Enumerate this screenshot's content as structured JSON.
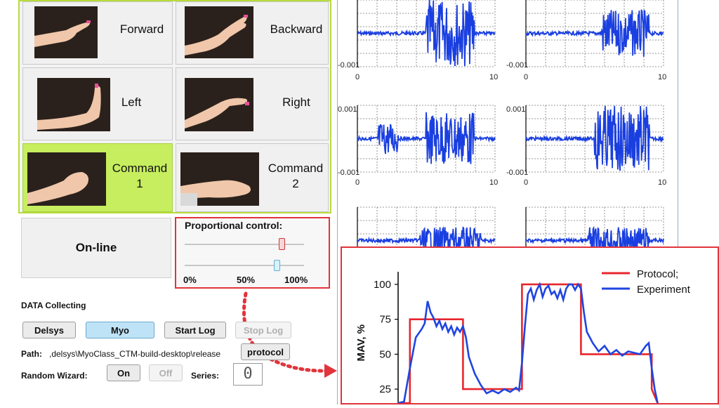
{
  "gestures": [
    {
      "label": "Forward"
    },
    {
      "label": "Backward"
    },
    {
      "label": "Left"
    },
    {
      "label": "Right"
    },
    {
      "label_line1": "Command",
      "label_line2": "1",
      "selected": true
    },
    {
      "label_line1": "Command",
      "label_line2": "2"
    }
  ],
  "online_button": "On-line",
  "proportional": {
    "title": "Proportional control:",
    "tick_0": "0%",
    "tick_50": "50%",
    "tick_100": "100%",
    "slider1_value_pct": 81,
    "slider2_value_pct": 77
  },
  "data_collecting": {
    "title": "DATA Collecting",
    "delsys": "Delsys",
    "myo": "Myo",
    "start_log": "Start Log",
    "stop_log": "Stop Log",
    "path_label": "Path:",
    "path_value": ",delsys\\MyoClass_CTM-build-desktop\\release",
    "protocol": "protocol",
    "random_wizard": "Random Wizard:",
    "on": "On",
    "off": "Off",
    "series": "Series:",
    "series_value": "0"
  },
  "emg_plots": {
    "y_top": "0.001",
    "y_bottom": "-0.001",
    "x_min": "0",
    "x_max": "10"
  },
  "chart_data": {
    "type": "line",
    "ylabel": "MAV, %",
    "yticks": [
      "100",
      "75",
      "50",
      "25"
    ],
    "ylim": [
      15,
      105
    ],
    "xlim": [
      0,
      100
    ],
    "legend_position": "top-right",
    "series": [
      {
        "name": "Protocol;",
        "color": "#e8262c",
        "x": [
          0,
          4,
          4,
          22,
          22,
          42,
          42,
          62,
          62,
          86,
          86,
          88
        ],
        "y": [
          15,
          15,
          75,
          75,
          25,
          25,
          100,
          100,
          50,
          50,
          25,
          15
        ]
      },
      {
        "name": "Experiment",
        "color": "#1f45e0",
        "x": [
          0,
          2,
          4,
          6,
          8,
          9,
          10,
          11,
          12,
          13,
          14,
          15,
          16,
          17,
          18,
          19,
          20,
          21,
          22,
          23,
          24,
          26,
          28,
          30,
          32,
          34,
          36,
          38,
          40,
          41,
          42,
          43,
          44,
          45,
          46,
          47,
          48,
          49,
          50,
          51,
          52,
          53,
          54,
          55,
          56,
          57,
          58,
          59,
          60,
          61,
          62,
          63,
          64,
          66,
          68,
          70,
          72,
          74,
          76,
          78,
          80,
          82,
          84,
          85,
          86,
          87,
          88
        ],
        "y": [
          15,
          16,
          40,
          62,
          68,
          72,
          88,
          80,
          76,
          70,
          74,
          68,
          72,
          66,
          70,
          64,
          69,
          66,
          70,
          62,
          48,
          36,
          28,
          22,
          24,
          22,
          25,
          23,
          26,
          24,
          44,
          70,
          93,
          97,
          89,
          96,
          100,
          91,
          97,
          99,
          93,
          95,
          90,
          96,
          89,
          97,
          100,
          100,
          96,
          100,
          97,
          80,
          66,
          58,
          52,
          56,
          50,
          53,
          49,
          52,
          51,
          50,
          56,
          58,
          40,
          25,
          15
        ]
      }
    ]
  }
}
